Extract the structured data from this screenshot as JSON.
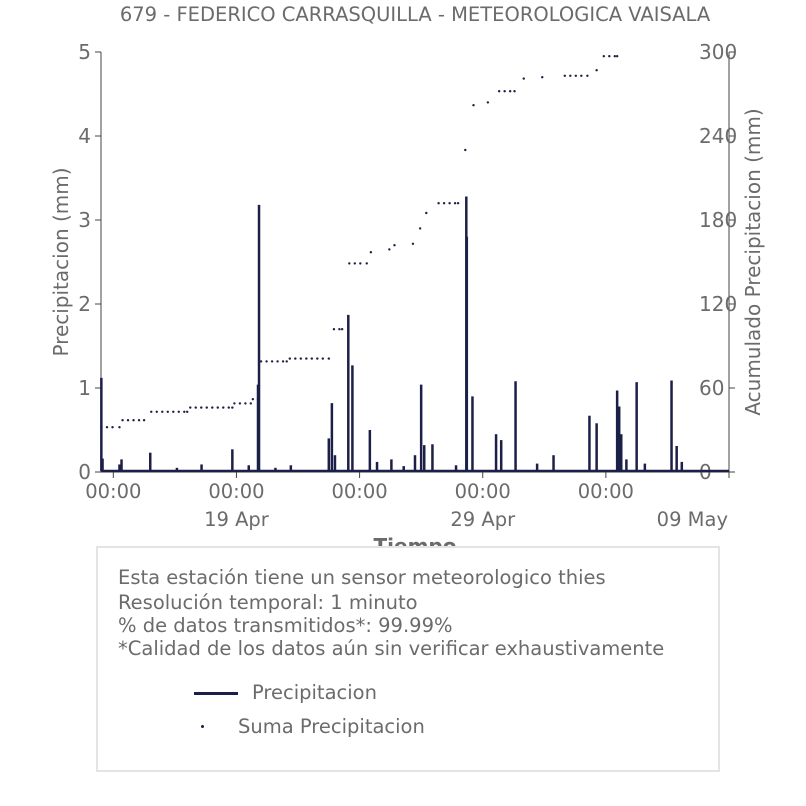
{
  "chart_data": {
    "type": "line",
    "title": "679 - FEDERICO CARRASQUILLA - METEOROLOGICA VAISALA",
    "xlabel": "Tiempo",
    "ylabel_left": "Precipitacion (mm)",
    "ylabel_right": "Acumulado Precipitacion (mm)",
    "ylim_left": [
      0,
      5
    ],
    "ylim_right": [
      0,
      300
    ],
    "yticks_left": [
      "0",
      "1",
      "2",
      "3",
      "4",
      "5"
    ],
    "yticks_right": [
      "0",
      "60",
      "120",
      "180",
      "240",
      "300"
    ],
    "x_start": "2023-04-13T12:00",
    "x_end": "2023-05-09T00:00",
    "x_ticks": [
      {
        "t": "2023-04-14T00:00",
        "label": "00:00",
        "sub": ""
      },
      {
        "t": "2023-04-19T00:00",
        "label": "00:00",
        "sub": "19 Apr"
      },
      {
        "t": "2023-04-24T00:00",
        "label": "00:00",
        "sub": ""
      },
      {
        "t": "2023-04-29T00:00",
        "label": "00:00",
        "sub": "29 Apr"
      },
      {
        "t": "2023-05-04T00:00",
        "label": "00:00",
        "sub": ""
      },
      {
        "t": "2023-05-09T00:00",
        "label": "",
        "sub": "09 May"
      }
    ],
    "grid": false,
    "series": [
      {
        "name": "Precipitacion",
        "color": "#1c1f47",
        "style": "line",
        "points": [
          [
            "2023-04-13T12:20",
            1.12
          ],
          [
            "2023-04-13T13:30",
            0.16
          ],
          [
            "2023-04-14T06:00",
            0.09
          ],
          [
            "2023-04-14T08:00",
            0.15
          ],
          [
            "2023-04-15T12:00",
            0.23
          ],
          [
            "2023-04-16T14:00",
            0.05
          ],
          [
            "2023-04-17T14:00",
            0.09
          ],
          [
            "2023-04-18T20:00",
            0.27
          ],
          [
            "2023-04-19T12:00",
            0.08
          ],
          [
            "2023-04-19T21:00",
            1.04
          ],
          [
            "2023-04-19T22:00",
            3.18
          ],
          [
            "2023-04-20T14:00",
            0.05
          ],
          [
            "2023-04-21T05:00",
            0.08
          ],
          [
            "2023-04-22T18:00",
            0.4
          ],
          [
            "2023-04-22T21:00",
            0.82
          ],
          [
            "2023-04-23T00:00",
            0.2
          ],
          [
            "2023-04-23T13:00",
            1.87
          ],
          [
            "2023-04-23T17:00",
            1.27
          ],
          [
            "2023-04-24T10:00",
            0.5
          ],
          [
            "2023-04-24T17:00",
            0.12
          ],
          [
            "2023-04-25T07:00",
            0.15
          ],
          [
            "2023-04-25T19:00",
            0.07
          ],
          [
            "2023-04-26T06:00",
            0.2
          ],
          [
            "2023-04-26T12:00",
            1.04
          ],
          [
            "2023-04-26T15:00",
            0.32
          ],
          [
            "2023-04-26T23:00",
            0.33
          ],
          [
            "2023-04-27T22:00",
            0.08
          ],
          [
            "2023-04-28T08:00",
            3.28
          ],
          [
            "2023-04-28T08:30",
            2.8
          ],
          [
            "2023-04-28T14:00",
            0.9
          ],
          [
            "2023-04-29T13:00",
            0.45
          ],
          [
            "2023-04-29T18:00",
            0.38
          ],
          [
            "2023-04-30T08:00",
            1.08
          ],
          [
            "2023-05-01T05:00",
            0.1
          ],
          [
            "2023-05-01T21:00",
            0.2
          ],
          [
            "2023-05-03T08:00",
            0.67
          ],
          [
            "2023-05-03T15:00",
            0.58
          ],
          [
            "2023-05-04T11:00",
            0.97
          ],
          [
            "2023-05-04T13:00",
            0.78
          ],
          [
            "2023-05-04T15:00",
            0.45
          ],
          [
            "2023-05-04T20:00",
            0.15
          ],
          [
            "2023-05-05T06:00",
            1.07
          ],
          [
            "2023-05-05T14:00",
            0.1
          ],
          [
            "2023-05-06T16:00",
            1.09
          ],
          [
            "2023-05-06T21:00",
            0.31
          ],
          [
            "2023-05-07T02:00",
            0.12
          ]
        ]
      },
      {
        "name": "Suma Precipitacion",
        "color": "#1c1f47",
        "style": "dots",
        "points": [
          [
            "2023-04-13T12:30",
            32
          ],
          [
            "2023-04-14T06:00",
            32
          ],
          [
            "2023-04-14T09:00",
            37
          ],
          [
            "2023-04-15T06:00",
            37
          ],
          [
            "2023-04-15T13:00",
            43
          ],
          [
            "2023-04-17T00:00",
            43
          ],
          [
            "2023-04-17T03:00",
            46
          ],
          [
            "2023-04-18T20:00",
            46
          ],
          [
            "2023-04-18T22:00",
            49
          ],
          [
            "2023-04-19T14:00",
            49
          ],
          [
            "2023-04-19T16:00",
            52
          ],
          [
            "2023-04-19T21:00",
            52
          ],
          [
            "2023-04-20T00:00",
            79
          ],
          [
            "2023-04-21T01:00",
            79
          ],
          [
            "2023-04-21T04:00",
            81
          ],
          [
            "2023-04-22T18:00",
            81
          ],
          [
            "2023-04-22T23:00",
            102
          ],
          [
            "2023-04-23T07:00",
            102
          ],
          [
            "2023-04-23T14:00",
            149
          ],
          [
            "2023-04-24T07:00",
            149
          ],
          [
            "2023-04-24T11:00",
            157
          ],
          [
            "2023-04-25T05:00",
            159
          ],
          [
            "2023-04-25T10:00",
            162
          ],
          [
            "2023-04-26T04:00",
            163
          ],
          [
            "2023-04-26T11:00",
            174
          ],
          [
            "2023-04-26T17:00",
            185
          ],
          [
            "2023-04-27T05:00",
            192
          ],
          [
            "2023-04-28T00:00",
            192
          ],
          [
            "2023-04-28T07:00",
            230
          ],
          [
            "2023-04-28T15:00",
            262
          ],
          [
            "2023-04-29T05:00",
            264
          ],
          [
            "2023-04-29T16:00",
            272
          ],
          [
            "2023-04-30T07:00",
            272
          ],
          [
            "2023-04-30T16:00",
            281
          ],
          [
            "2023-05-01T10:00",
            282
          ],
          [
            "2023-05-02T08:00",
            283
          ],
          [
            "2023-05-03T06:00",
            283
          ],
          [
            "2023-05-03T15:00",
            287
          ],
          [
            "2023-05-03T22:00",
            297
          ],
          [
            "2023-05-04T11:00",
            297
          ]
        ]
      }
    ]
  },
  "info": {
    "line1": "Esta estación tiene un sensor meteorologico thies",
    "line2": "Resolución temporal: 1 minuto",
    "line3": "% de datos transmitidos*: 99.99%",
    "line4": "*Calidad de los datos aún sin verificar exhaustivamente"
  },
  "legend": {
    "item1": "Precipitacion",
    "item2": "Suma Precipitacion"
  },
  "colors": {
    "series": "#1c1f47",
    "text": "#6b6b6b",
    "axis": "#444444"
  }
}
